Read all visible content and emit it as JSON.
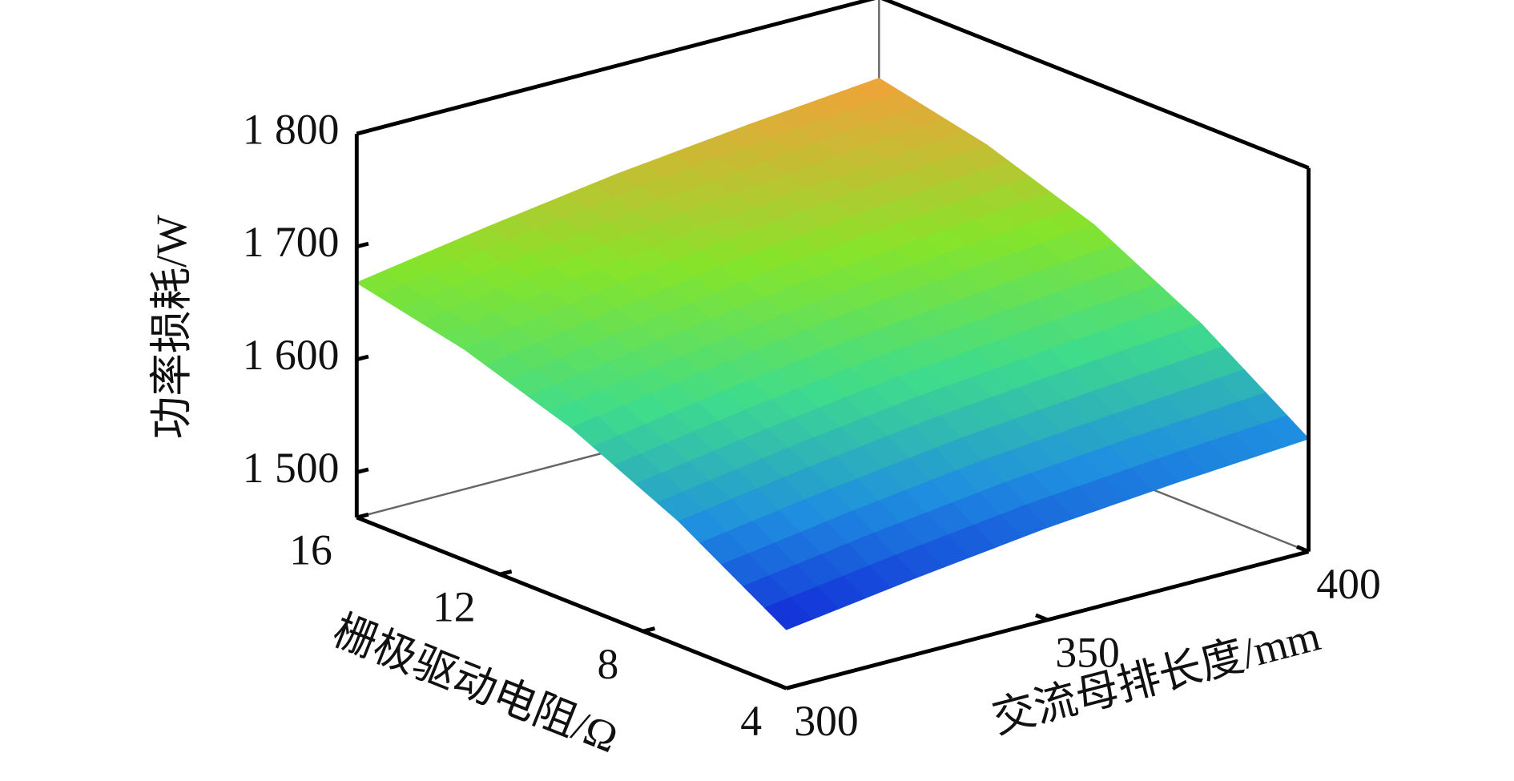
{
  "chart_data": {
    "type": "surface",
    "xlabel": "交流母排长度/mm",
    "ylabel": "栅极驱动电阻/Ω",
    "zlabel": "功率损耗/W",
    "x": [
      300,
      325,
      350,
      375,
      400
    ],
    "y": [
      4,
      7,
      10,
      13,
      16
    ],
    "z": [
      [
        1512,
        1528,
        1542,
        1552,
        1560
      ],
      [
        1570,
        1588,
        1603,
        1614,
        1624
      ],
      [
        1615,
        1634,
        1651,
        1663,
        1674
      ],
      [
        1647,
        1666,
        1683,
        1696,
        1707
      ],
      [
        1668,
        1687,
        1704,
        1717,
        1728
      ]
    ],
    "xlim": [
      300,
      400
    ],
    "xticks": [
      300,
      350,
      400
    ],
    "ylim": [
      4,
      16
    ],
    "yticks": [
      4,
      8,
      12,
      16
    ],
    "zlim": [
      1460,
      1800
    ],
    "zticks": [
      {
        "value": 1500,
        "label": "1 500"
      },
      {
        "value": 1600,
        "label": "1 600"
      },
      {
        "value": 1700,
        "label": "1 700"
      },
      {
        "value": 1800,
        "label": "1 800"
      }
    ],
    "colormap": [
      "#1228d8",
      "#1f8fe0",
      "#3fdc8c",
      "#86e42a",
      "#f2a13a"
    ]
  }
}
